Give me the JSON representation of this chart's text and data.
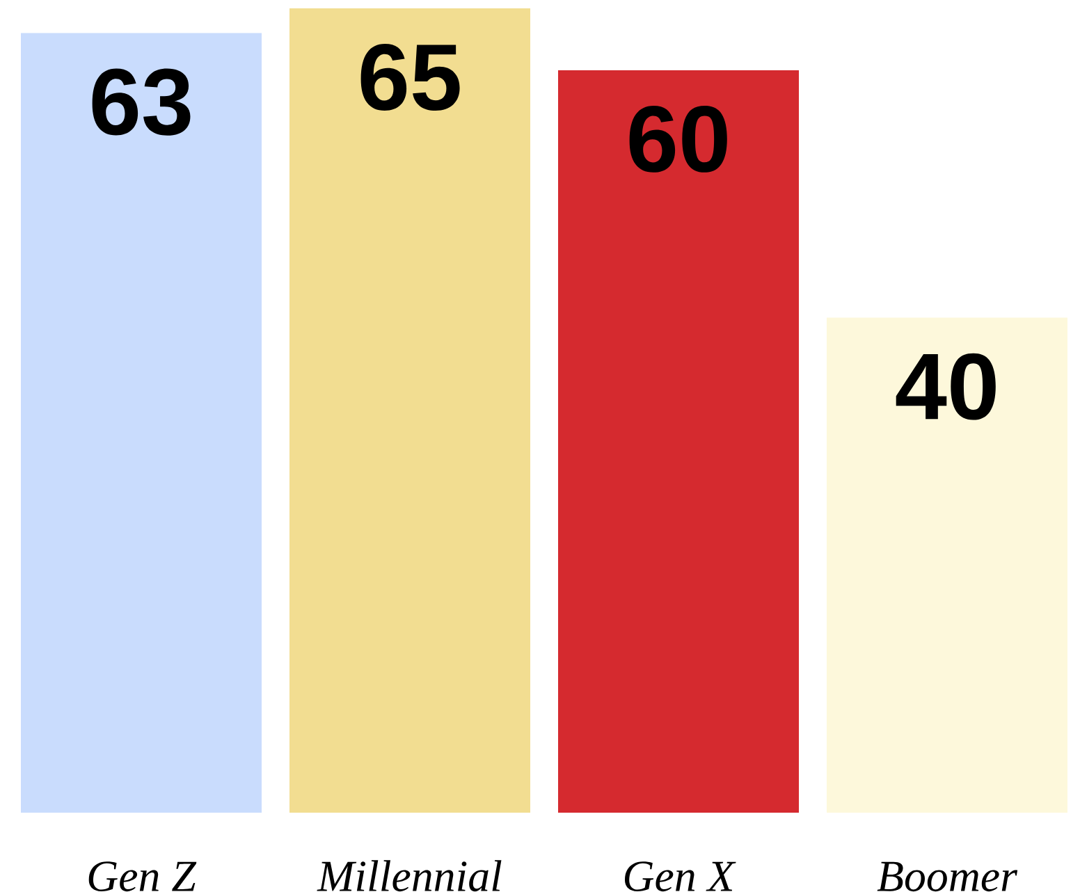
{
  "chart_data": {
    "type": "bar",
    "categories": [
      "Gen Z",
      "Millennial",
      "Gen X",
      "Boomer"
    ],
    "values": [
      63,
      65,
      60,
      40
    ],
    "colors": [
      "#c9dcfd",
      "#f2dd91",
      "#d52a2f",
      "#fdf8db"
    ],
    "ylim": [
      0,
      65
    ],
    "data_labels": true,
    "tick_labels": "x"
  }
}
